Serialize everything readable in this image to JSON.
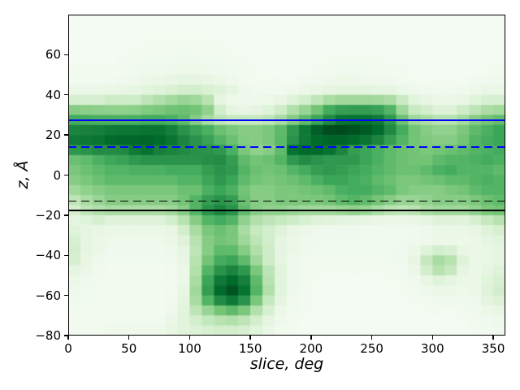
{
  "figure": {
    "background": "#ffffff",
    "title": ""
  },
  "chart_data": {
    "type": "heatmap",
    "title": "",
    "xlabel": "slice, deg",
    "ylabel": "z, Å",
    "xlim": [
      0,
      360
    ],
    "ylim": [
      -80,
      80
    ],
    "xticks": [
      0,
      50,
      100,
      150,
      200,
      250,
      300,
      350
    ],
    "yticks": [
      -80,
      -60,
      -40,
      -20,
      0,
      20,
      40,
      60
    ],
    "xtick_labels": [
      "0",
      "50",
      "100",
      "150",
      "200",
      "250",
      "300",
      "350"
    ],
    "ytick_labels": [
      "−80",
      "−60",
      "−40",
      "−20",
      "0",
      "20",
      "40",
      "60"
    ],
    "grid": "off",
    "legend": "none",
    "colormap": "Greens",
    "colormap_anchors": [
      "#f7fcf5",
      "#e5f5e0",
      "#c7e9c0",
      "#a1d99b",
      "#74c476",
      "#41ab5d",
      "#238b45",
      "#006d2c",
      "#00441b"
    ],
    "x_bin_width_deg": 10,
    "y_bin_height_A": 5,
    "rows_top_z": 80,
    "values_scale": "0-100 intensity, rows ordered top (z=80) to bottom (z=-80), 36 columns x=0..360",
    "values": [
      [
        2,
        2,
        2,
        2,
        2,
        2,
        2,
        2,
        2,
        2,
        2,
        2,
        2,
        2,
        2,
        2,
        2,
        2,
        2,
        2,
        2,
        2,
        2,
        2,
        2,
        2,
        2,
        2,
        2,
        2,
        2,
        2,
        2,
        2,
        2,
        2
      ],
      [
        2,
        2,
        2,
        2,
        2,
        2,
        2,
        2,
        2,
        2,
        2,
        2,
        2,
        2,
        2,
        2,
        2,
        2,
        2,
        2,
        2,
        2,
        2,
        2,
        2,
        2,
        2,
        2,
        2,
        2,
        2,
        2,
        2,
        2,
        2,
        2
      ],
      [
        2,
        2,
        2,
        2,
        2,
        2,
        3,
        3,
        3,
        3,
        3,
        3,
        3,
        2,
        2,
        2,
        2,
        2,
        2,
        2,
        2,
        2,
        2,
        2,
        2,
        2,
        2,
        2,
        2,
        2,
        2,
        2,
        2,
        2,
        2,
        2
      ],
      [
        2,
        2,
        2,
        2,
        2,
        3,
        3,
        3,
        3,
        4,
        4,
        3,
        3,
        3,
        2,
        2,
        2,
        2,
        2,
        2,
        2,
        2,
        2,
        2,
        2,
        2,
        2,
        2,
        2,
        2,
        2,
        2,
        2,
        2,
        2,
        2
      ],
      [
        2,
        2,
        2,
        2,
        3,
        3,
        4,
        4,
        4,
        5,
        5,
        4,
        4,
        3,
        3,
        2,
        2,
        2,
        2,
        2,
        2,
        3,
        3,
        3,
        3,
        3,
        2,
        2,
        2,
        2,
        2,
        2,
        2,
        2,
        2,
        2
      ],
      [
        3,
        3,
        3,
        3,
        3,
        4,
        5,
        5,
        6,
        7,
        7,
        6,
        5,
        4,
        3,
        3,
        2,
        2,
        2,
        2,
        3,
        3,
        4,
        4,
        4,
        3,
        3,
        3,
        2,
        2,
        2,
        2,
        2,
        2,
        3,
        3
      ],
      [
        4,
        4,
        4,
        4,
        5,
        6,
        8,
        9,
        10,
        12,
        12,
        10,
        8,
        6,
        4,
        3,
        3,
        3,
        3,
        4,
        5,
        6,
        7,
        7,
        6,
        6,
        5,
        4,
        3,
        3,
        3,
        3,
        3,
        4,
        5,
        5
      ],
      [
        8,
        8,
        8,
        9,
        10,
        11,
        13,
        15,
        17,
        20,
        20,
        17,
        15,
        12,
        6,
        4,
        4,
        4,
        6,
        8,
        10,
        12,
        13,
        13,
        13,
        12,
        11,
        8,
        6,
        5,
        4,
        4,
        5,
        7,
        9,
        9
      ],
      [
        18,
        18,
        18,
        22,
        22,
        22,
        28,
        32,
        36,
        40,
        38,
        30,
        12,
        7,
        6,
        6,
        7,
        10,
        15,
        20,
        27,
        34,
        38,
        38,
        38,
        37,
        34,
        24,
        14,
        10,
        8,
        8,
        10,
        14,
        18,
        18
      ],
      [
        45,
        44,
        43,
        42,
        42,
        43,
        46,
        48,
        51,
        52,
        50,
        42,
        20,
        12,
        10,
        12,
        15,
        22,
        32,
        40,
        50,
        62,
        67,
        68,
        68,
        66,
        58,
        38,
        24,
        20,
        16,
        16,
        22,
        28,
        34,
        36
      ],
      [
        62,
        61,
        60,
        60,
        60,
        60,
        62,
        62,
        60,
        55,
        45,
        35,
        28,
        25,
        25,
        25,
        28,
        35,
        45,
        55,
        65,
        76,
        84,
        85,
        85,
        82,
        70,
        52,
        38,
        34,
        30,
        30,
        36,
        45,
        50,
        54
      ],
      [
        78,
        79,
        80,
        82,
        83,
        83,
        84,
        84,
        80,
        72,
        66,
        60,
        52,
        48,
        45,
        45,
        48,
        55,
        70,
        82,
        92,
        97,
        98,
        96,
        93,
        88,
        76,
        62,
        50,
        45,
        42,
        42,
        48,
        55,
        60,
        65
      ],
      [
        82,
        83,
        84,
        88,
        89,
        89,
        90,
        88,
        84,
        78,
        72,
        66,
        58,
        52,
        46,
        45,
        48,
        56,
        72,
        82,
        88,
        90,
        90,
        88,
        84,
        78,
        68,
        58,
        50,
        47,
        45,
        45,
        50,
        58,
        62,
        65
      ],
      [
        70,
        72,
        75,
        75,
        76,
        82,
        85,
        80,
        78,
        76,
        73,
        72,
        70,
        60,
        48,
        42,
        45,
        55,
        85,
        88,
        88,
        85,
        78,
        68,
        65,
        60,
        55,
        52,
        50,
        48,
        50,
        52,
        55,
        58,
        60,
        62
      ],
      [
        52,
        55,
        60,
        64,
        66,
        70,
        72,
        72,
        72,
        72,
        72,
        74,
        75,
        68,
        55,
        50,
        52,
        58,
        70,
        75,
        72,
        70,
        70,
        70,
        65,
        60,
        55,
        52,
        50,
        50,
        55,
        58,
        58,
        60,
        62,
        60
      ],
      [
        48,
        52,
        55,
        58,
        58,
        60,
        60,
        60,
        62,
        62,
        62,
        68,
        72,
        70,
        58,
        52,
        50,
        52,
        58,
        62,
        68,
        70,
        68,
        65,
        62,
        58,
        55,
        52,
        52,
        55,
        60,
        62,
        58,
        58,
        58,
        55
      ],
      [
        45,
        48,
        52,
        55,
        55,
        55,
        55,
        55,
        55,
        58,
        58,
        65,
        70,
        65,
        55,
        50,
        48,
        50,
        52,
        55,
        60,
        65,
        65,
        62,
        60,
        55,
        52,
        48,
        48,
        50,
        52,
        55,
        55,
        58,
        60,
        58
      ],
      [
        38,
        42,
        45,
        48,
        48,
        48,
        48,
        48,
        48,
        52,
        52,
        60,
        65,
        60,
        50,
        45,
        45,
        48,
        48,
        50,
        52,
        55,
        60,
        62,
        62,
        58,
        55,
        48,
        45,
        45,
        45,
        48,
        50,
        55,
        58,
        58
      ],
      [
        28,
        35,
        40,
        45,
        45,
        45,
        45,
        45,
        45,
        50,
        58,
        68,
        72,
        68,
        52,
        45,
        45,
        48,
        48,
        48,
        48,
        50,
        55,
        58,
        55,
        50,
        45,
        40,
        40,
        42,
        45,
        45,
        45,
        48,
        52,
        55
      ],
      [
        20,
        28,
        32,
        35,
        35,
        35,
        35,
        35,
        38,
        45,
        58,
        72,
        78,
        72,
        55,
        45,
        42,
        42,
        40,
        38,
        38,
        38,
        40,
        42,
        40,
        35,
        30,
        28,
        30,
        35,
        38,
        38,
        38,
        42,
        48,
        50
      ],
      [
        12,
        15,
        18,
        15,
        15,
        15,
        15,
        15,
        20,
        30,
        45,
        58,
        62,
        58,
        42,
        32,
        28,
        25,
        22,
        18,
        15,
        14,
        13,
        12,
        10,
        9,
        8,
        8,
        9,
        12,
        15,
        15,
        14,
        18,
        25,
        30
      ],
      [
        15,
        12,
        10,
        8,
        8,
        8,
        8,
        8,
        10,
        20,
        35,
        48,
        52,
        48,
        35,
        25,
        20,
        15,
        10,
        8,
        6,
        5,
        5,
        5,
        4,
        4,
        4,
        4,
        5,
        6,
        8,
        8,
        8,
        10,
        15,
        18
      ],
      [
        18,
        12,
        8,
        6,
        6,
        6,
        6,
        6,
        8,
        15,
        30,
        45,
        50,
        48,
        38,
        28,
        20,
        12,
        8,
        6,
        5,
        4,
        4,
        4,
        4,
        4,
        4,
        4,
        5,
        6,
        7,
        7,
        7,
        8,
        12,
        14
      ],
      [
        20,
        12,
        8,
        5,
        5,
        5,
        5,
        5,
        6,
        12,
        28,
        45,
        55,
        55,
        45,
        32,
        22,
        12,
        8,
        5,
        4,
        4,
        4,
        4,
        4,
        4,
        4,
        5,
        8,
        15,
        20,
        18,
        10,
        8,
        10,
        12
      ],
      [
        18,
        10,
        6,
        4,
        4,
        4,
        4,
        4,
        5,
        10,
        30,
        50,
        62,
        65,
        55,
        38,
        22,
        12,
        6,
        4,
        3,
        3,
        3,
        3,
        3,
        3,
        4,
        5,
        10,
        25,
        35,
        30,
        15,
        8,
        10,
        12
      ],
      [
        12,
        8,
        5,
        3,
        3,
        3,
        3,
        3,
        4,
        8,
        32,
        58,
        72,
        78,
        70,
        48,
        28,
        14,
        6,
        4,
        3,
        3,
        3,
        3,
        3,
        3,
        3,
        4,
        8,
        20,
        30,
        25,
        12,
        8,
        12,
        15
      ],
      [
        8,
        5,
        4,
        3,
        3,
        3,
        3,
        3,
        4,
        8,
        35,
        65,
        82,
        88,
        80,
        55,
        30,
        14,
        6,
        4,
        3,
        2,
        2,
        2,
        2,
        2,
        3,
        3,
        5,
        10,
        15,
        12,
        8,
        8,
        14,
        18
      ],
      [
        6,
        4,
        3,
        3,
        3,
        3,
        3,
        3,
        4,
        10,
        38,
        68,
        88,
        95,
        85,
        58,
        32,
        14,
        6,
        3,
        2,
        2,
        2,
        2,
        2,
        2,
        2,
        3,
        4,
        6,
        8,
        8,
        6,
        8,
        15,
        20
      ],
      [
        5,
        4,
        3,
        3,
        3,
        3,
        3,
        3,
        5,
        12,
        35,
        58,
        75,
        82,
        72,
        48,
        25,
        12,
        5,
        3,
        2,
        2,
        2,
        2,
        2,
        2,
        2,
        2,
        3,
        4,
        5,
        5,
        5,
        6,
        12,
        16
      ],
      [
        4,
        3,
        3,
        3,
        3,
        3,
        3,
        3,
        6,
        14,
        28,
        40,
        50,
        55,
        48,
        32,
        18,
        8,
        4,
        3,
        2,
        2,
        2,
        2,
        2,
        2,
        2,
        2,
        2,
        3,
        3,
        3,
        4,
        5,
        8,
        10
      ],
      [
        3,
        3,
        3,
        4,
        4,
        4,
        4,
        4,
        8,
        14,
        20,
        26,
        30,
        32,
        28,
        20,
        12,
        6,
        3,
        2,
        2,
        2,
        2,
        2,
        2,
        2,
        2,
        2,
        2,
        2,
        2,
        2,
        3,
        4,
        5,
        6
      ],
      [
        3,
        3,
        4,
        6,
        6,
        6,
        6,
        6,
        10,
        14,
        16,
        18,
        20,
        20,
        18,
        14,
        8,
        4,
        3,
        2,
        2,
        2,
        2,
        2,
        2,
        2,
        2,
        2,
        2,
        2,
        2,
        2,
        2,
        3,
        4,
        5
      ]
    ],
    "hlines": [
      {
        "z": 27.5,
        "color": "#0000ff",
        "style": "solid",
        "width": 2.2,
        "name": "hline-blue-solid"
      },
      {
        "z": 14,
        "color": "#0000ff",
        "style": "dashed",
        "width": 2.2,
        "name": "hline-blue-dashed"
      },
      {
        "z": -13,
        "color": "#000000",
        "style": "dashed",
        "width": 1.8,
        "name": "hline-black-dashed"
      },
      {
        "z": -17.5,
        "color": "#000000",
        "style": "solid",
        "width": 1.8,
        "name": "hline-black-solid"
      }
    ]
  }
}
